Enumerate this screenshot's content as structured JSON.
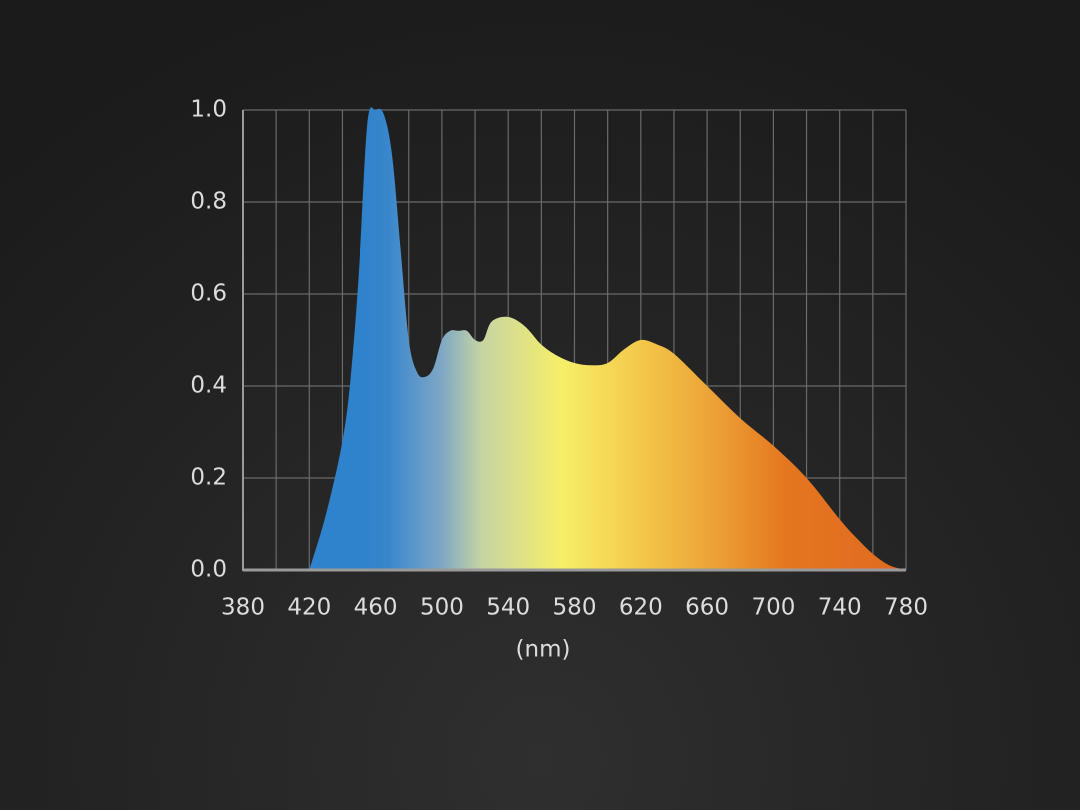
{
  "chart_data": {
    "type": "area",
    "x": [
      420,
      430,
      440,
      445,
      450,
      455,
      460,
      465,
      470,
      475,
      480,
      485,
      490,
      495,
      500,
      505,
      510,
      515,
      520,
      525,
      530,
      540,
      550,
      560,
      570,
      580,
      590,
      600,
      610,
      620,
      630,
      640,
      660,
      680,
      700,
      720,
      740,
      750,
      760,
      770,
      780
    ],
    "values": [
      0,
      0.12,
      0.28,
      0.42,
      0.65,
      0.97,
      1.0,
      0.99,
      0.9,
      0.7,
      0.5,
      0.43,
      0.42,
      0.44,
      0.5,
      0.52,
      0.52,
      0.52,
      0.5,
      0.5,
      0.54,
      0.55,
      0.53,
      0.49,
      0.465,
      0.45,
      0.445,
      0.45,
      0.48,
      0.5,
      0.49,
      0.47,
      0.4,
      0.33,
      0.27,
      0.2,
      0.11,
      0.07,
      0.035,
      0.01,
      0
    ],
    "x_label": "(nm)",
    "xlim": [
      380,
      780
    ],
    "xticks": [
      380,
      420,
      460,
      500,
      540,
      580,
      620,
      660,
      700,
      740,
      780
    ],
    "ylim": [
      0,
      1
    ],
    "yticks": [
      {
        "value": 0,
        "label": "0.0"
      },
      0.2,
      0.4,
      0.6,
      0.8,
      {
        "value": 1,
        "label": "1.0"
      }
    ],
    "grid": true
  }
}
